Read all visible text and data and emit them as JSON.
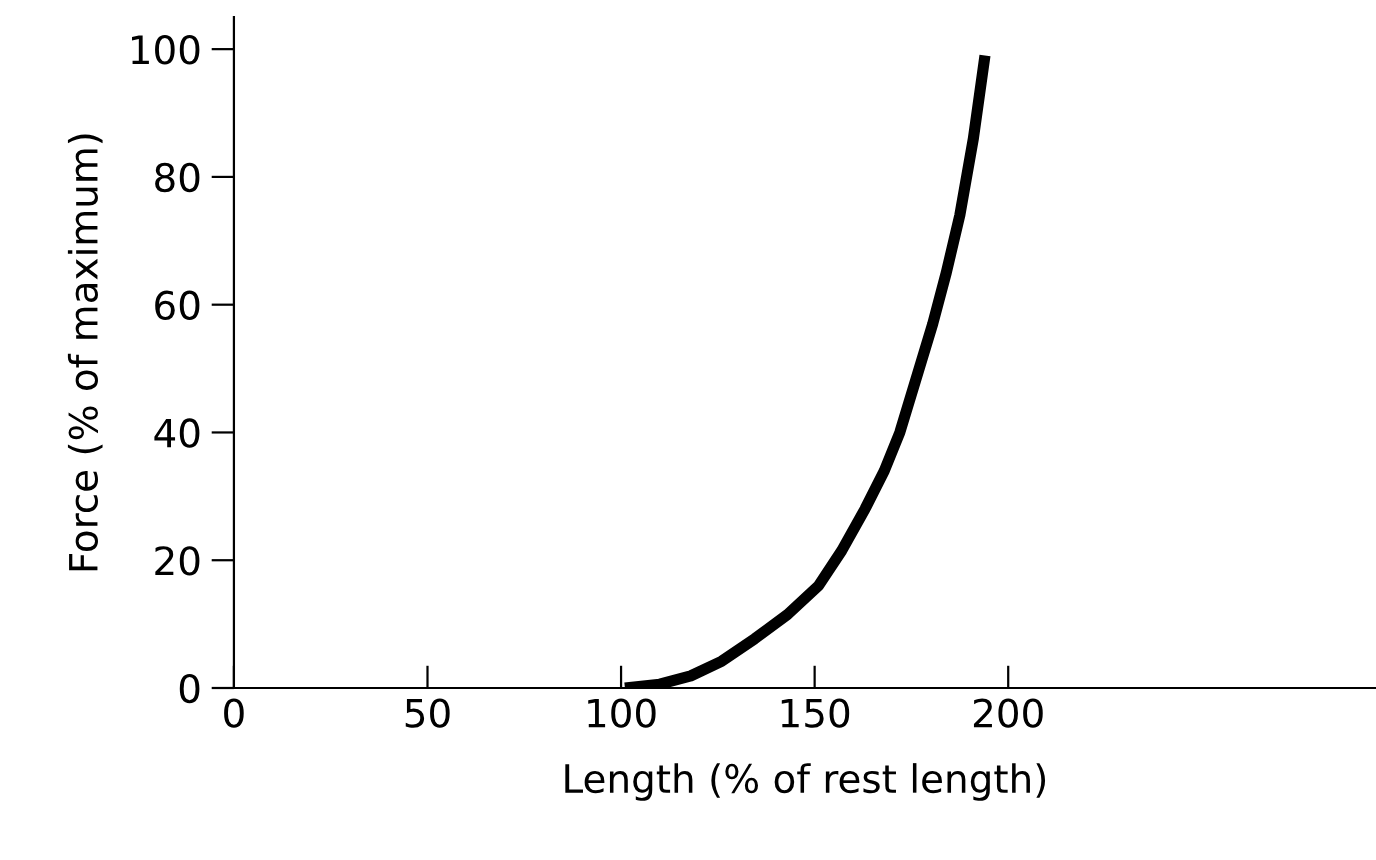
{
  "chart_data": {
    "type": "line",
    "xlabel": "Length (% of rest length)",
    "ylabel": "Force (% of maximum)",
    "series": [
      {
        "color": "#000000",
        "x": [
          101,
          110,
          118,
          126,
          134.5,
          143,
          151,
          157,
          163,
          168,
          172,
          176,
          180.5,
          184,
          187.5,
          191,
          194
        ],
        "values": [
          0,
          0.6,
          1.9,
          4.2,
          7.7,
          11.5,
          16,
          21.5,
          28,
          34,
          40,
          48,
          57,
          65,
          74,
          86,
          99
        ]
      }
    ],
    "xlim": [
      0,
      295
    ],
    "ylim": [
      0,
      105
    ],
    "xticks": [
      0,
      50,
      100,
      150,
      200
    ],
    "yticks": [
      0,
      20,
      40,
      60,
      80,
      100
    ],
    "grid": false,
    "legend": false,
    "marker": "none",
    "line_style": "solid"
  }
}
